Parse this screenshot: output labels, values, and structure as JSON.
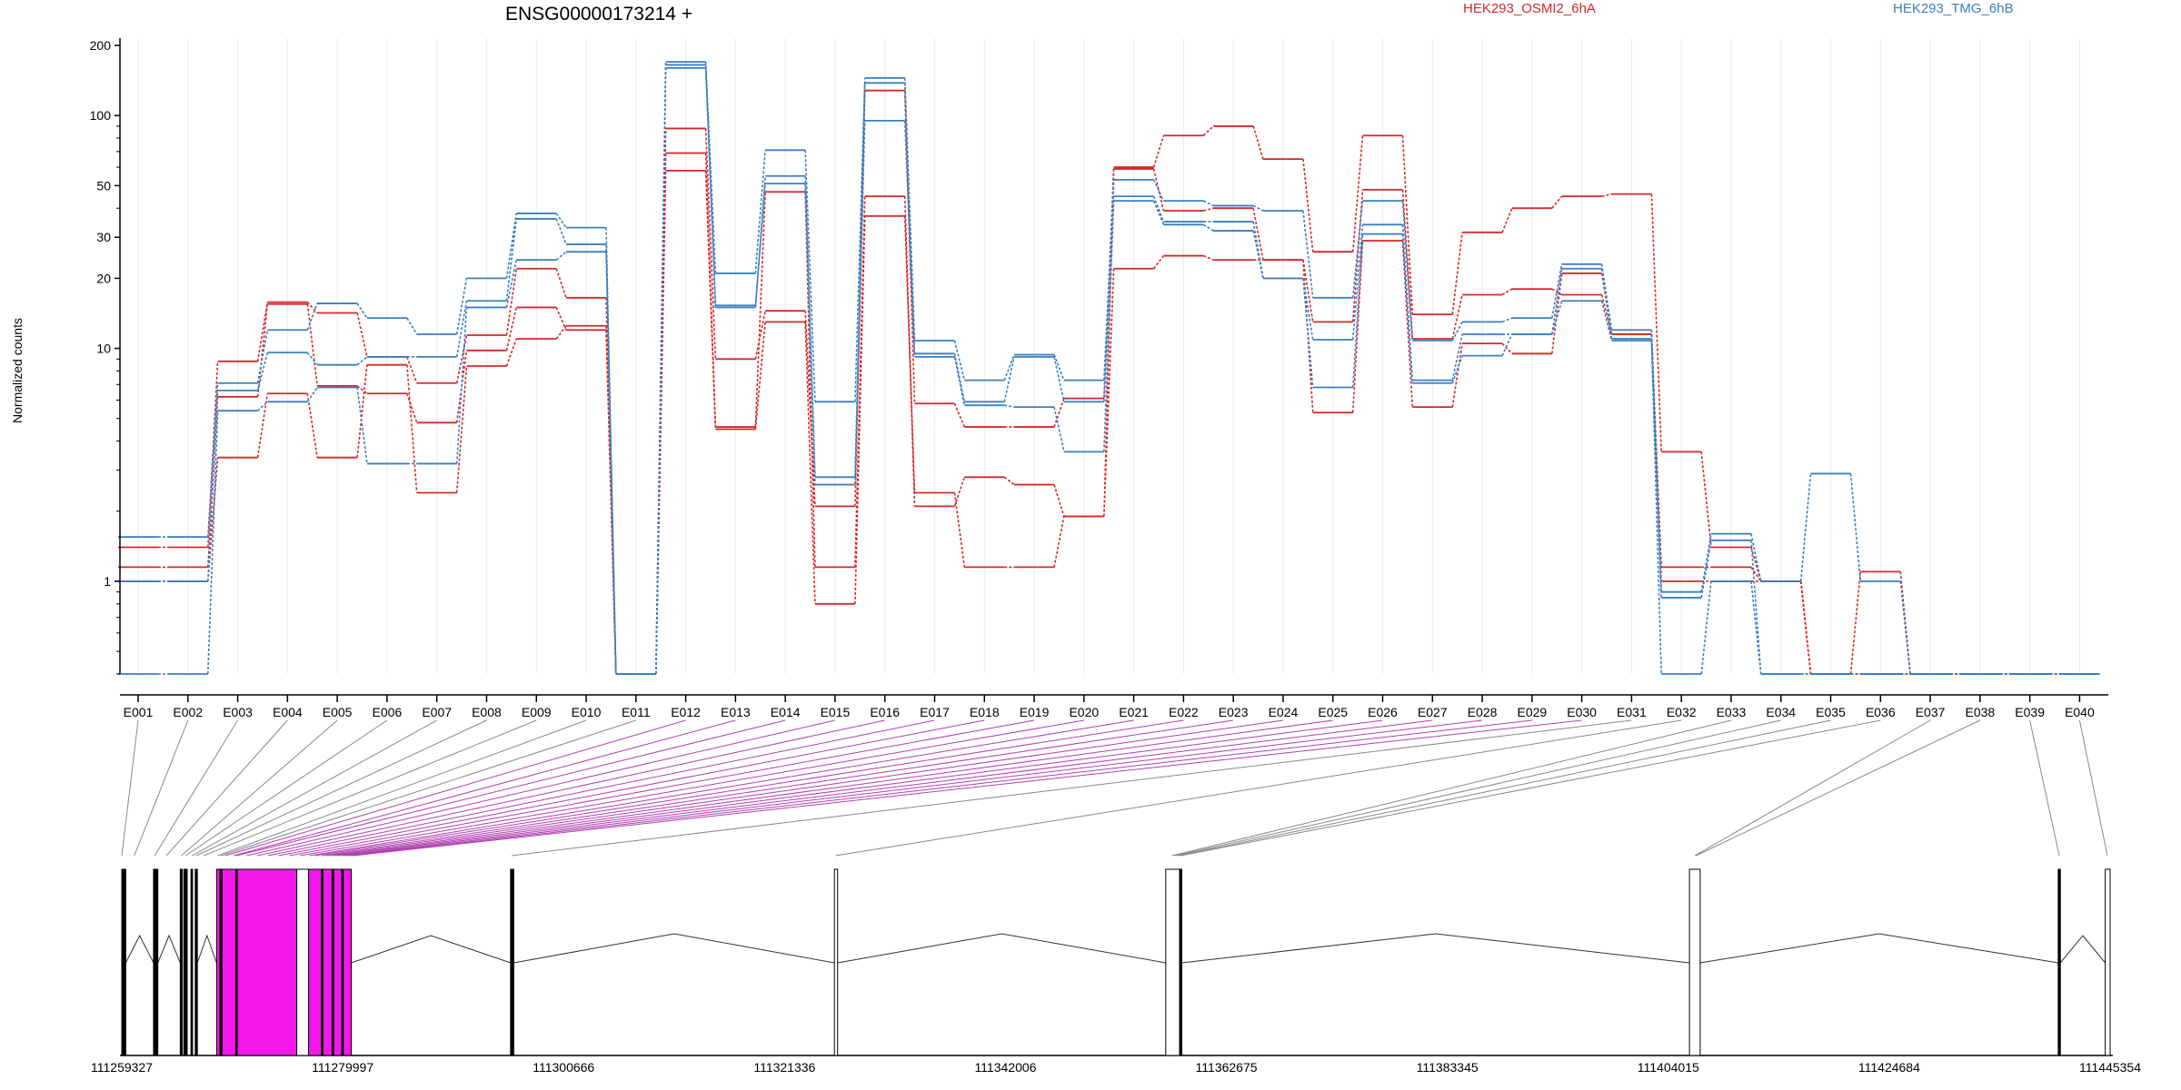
{
  "title": "ENSG00000173214 +",
  "ylabel": "Normalized counts",
  "legend": [
    {
      "name": "HEK293_OSMI2_6hA",
      "color": "#d62728"
    },
    {
      "name": "HEK293_TMG_6hB",
      "color": "#3a7fbf"
    }
  ],
  "colors": {
    "highlight": "#f218e8",
    "highlight_line": "#b040b0",
    "axis": "#000000",
    "grid": "#e8ebf2",
    "connector": "#888888"
  },
  "chart_data": {
    "type": "line",
    "yscale": "log",
    "ylim": [
      0.4,
      200
    ],
    "ylabel": "Normalized counts",
    "yticks": [
      1,
      10,
      20,
      30,
      50,
      100,
      200
    ],
    "categories": [
      "E001",
      "E002",
      "E003",
      "E004",
      "E005",
      "E006",
      "E007",
      "E008",
      "E009",
      "E010",
      "E011",
      "E012",
      "E013",
      "E014",
      "E015",
      "E016",
      "E017",
      "E018",
      "E019",
      "E020",
      "E021",
      "E022",
      "E023",
      "E024",
      "E025",
      "E026",
      "E027",
      "E028",
      "E029",
      "E030",
      "E031",
      "E032",
      "E033",
      "E034",
      "E035",
      "E036",
      "E037",
      "E038",
      "E039",
      "E040"
    ],
    "series": [
      {
        "group": "HEK293_OSMI2_6hA",
        "values": [
          1.4,
          1.4,
          8.8,
          15.8,
          14.2,
          9.2,
          7.1,
          11.4,
          22,
          16.5,
          0.4,
          88,
          9,
          14.5,
          2.1,
          128,
          5.8,
          4.6,
          4.6,
          6.1,
          60,
          82,
          90,
          65,
          26,
          82,
          14,
          31.5,
          40,
          45,
          46,
          3.6,
          1.4,
          1.0,
          0.4,
          1.1,
          0.4,
          0.4,
          0.4,
          0.4
        ]
      },
      {
        "group": "HEK293_OSMI2_6hA",
        "values": [
          1.15,
          1.15,
          6.2,
          15.5,
          6.9,
          6.4,
          4.8,
          9.8,
          15,
          12,
          0.4,
          69,
          4.6,
          47,
          1.15,
          45,
          2.1,
          2.8,
          2.6,
          1.9,
          59,
          39,
          40,
          24,
          13,
          48,
          11,
          17,
          18,
          17,
          11.5,
          1.15,
          1.15,
          1.0,
          0.4,
          0.4,
          0.4,
          0.4,
          0.4,
          0.4
        ]
      },
      {
        "group": "HEK293_OSMI2_6hA",
        "values": [
          1.0,
          1.0,
          3.4,
          6.4,
          3.4,
          8.5,
          2.4,
          8.4,
          11,
          12.5,
          0.4,
          58,
          4.5,
          13,
          0.8,
          37,
          2.4,
          1.15,
          1.15,
          1.9,
          22,
          25,
          24,
          24,
          5.3,
          29,
          5.6,
          10.5,
          9.5,
          21,
          11.5,
          1.0,
          1.0,
          1.0,
          0.4,
          0.4,
          0.4,
          0.4,
          0.4,
          0.4
        ]
      },
      {
        "group": "HEK293_TMG_6hB",
        "values": [
          1.55,
          1.55,
          7.1,
          12,
          15.6,
          13.5,
          11.5,
          20,
          38,
          33,
          0.4,
          170,
          21,
          71,
          5.9,
          145,
          10.8,
          7.3,
          9.4,
          7.3,
          53,
          43,
          41,
          39,
          16.5,
          43,
          10.8,
          13,
          13.5,
          23,
          12,
          0.9,
          1.6,
          1.0,
          2.9,
          1.0,
          0.4,
          0.4,
          0.4,
          0.4
        ]
      },
      {
        "group": "HEK293_TMG_6hB",
        "values": [
          1.0,
          1.0,
          6.6,
          9.6,
          8.5,
          9.2,
          9.2,
          16,
          36,
          28,
          0.4,
          165,
          15,
          55,
          2.8,
          138,
          9.5,
          5.9,
          9.2,
          5.9,
          45,
          35,
          35,
          20,
          10.9,
          34,
          7.3,
          11.5,
          11.5,
          22,
          11,
          0.4,
          1.0,
          0.4,
          0.4,
          0.4,
          0.4,
          0.4,
          0.4,
          0.4
        ]
      },
      {
        "group": "HEK293_TMG_6hB",
        "values": [
          0.4,
          0.4,
          5.4,
          5.9,
          6.8,
          3.2,
          3.2,
          15,
          24,
          26,
          0.4,
          160,
          15.3,
          51,
          2.6,
          95,
          9.2,
          5.7,
          5.6,
          3.6,
          43,
          34,
          32,
          20,
          6.8,
          31,
          7.1,
          9.3,
          11.5,
          16,
          10.8,
          0.85,
          1.5,
          0.4,
          0.4,
          0.4,
          0.4,
          0.4,
          0.4,
          0.4
        ]
      }
    ]
  },
  "gene_model": {
    "coordinate_ticks": [
      "111259327",
      "111279997",
      "111300666",
      "111321336",
      "111342006",
      "111362675",
      "111383345",
      "111404015",
      "111424684",
      "111445354"
    ],
    "range": [
      111259327,
      111445354
    ],
    "exons": [
      {
        "start": 111259327,
        "end": 111259550,
        "fill": "#000000"
      },
      {
        "start": 111259550,
        "end": 111259700,
        "fill": "#000000"
      },
      {
        "start": 111262300,
        "end": 111262700,
        "fill": "#000000"
      },
      {
        "start": 111264800,
        "end": 111265000,
        "fill": "#000000"
      },
      {
        "start": 111266200,
        "end": 111266400,
        "fill": "#000000"
      },
      {
        "start": 111265150,
        "end": 111265450,
        "fill": "#000000"
      },
      {
        "start": 111265800,
        "end": 111265950,
        "fill": "#000000"
      },
      {
        "start": 111268200,
        "end": 111275700,
        "fill": "#f218e8"
      },
      {
        "start": 111268500,
        "end": 111268700,
        "fill": "#000000"
      },
      {
        "start": 111270000,
        "end": 111270100,
        "fill": "#000000"
      },
      {
        "start": 111275700,
        "end": 111276800,
        "fill": "#ffffff"
      },
      {
        "start": 111276800,
        "end": 111280800,
        "fill": "#f218e8"
      },
      {
        "start": 111278000,
        "end": 111278150,
        "fill": "#000000"
      },
      {
        "start": 111279000,
        "end": 111279150,
        "fill": "#000000"
      },
      {
        "start": 111279900,
        "end": 111280050,
        "fill": "#000000"
      },
      {
        "start": 111295700,
        "end": 111296000,
        "fill": "#000000"
      },
      {
        "start": 111326000,
        "end": 111326300,
        "fill": "#ffffff"
      },
      {
        "start": 111357000,
        "end": 111358300,
        "fill": "#ffffff"
      },
      {
        "start": 111358300,
        "end": 111358500,
        "fill": "#000000"
      },
      {
        "start": 111406000,
        "end": 111407000,
        "fill": "#ffffff"
      },
      {
        "start": 111440500,
        "end": 111440700,
        "fill": "#000000"
      },
      {
        "start": 111444900,
        "end": 111445354,
        "fill": "#ffffff"
      }
    ]
  }
}
